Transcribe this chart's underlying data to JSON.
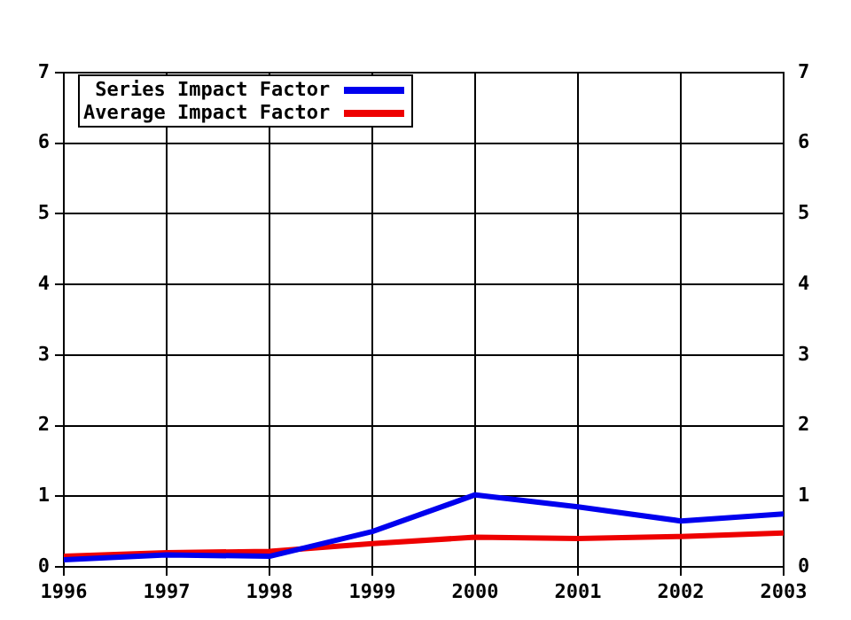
{
  "chart_data": {
    "type": "line",
    "x": [
      1996,
      1997,
      1998,
      1999,
      2000,
      2001,
      2002,
      2003
    ],
    "series": [
      {
        "name": "Series Impact Factor",
        "color": "#0000ee",
        "values": [
          0.1,
          0.17,
          0.15,
          0.5,
          1.02,
          0.85,
          0.65,
          0.75
        ]
      },
      {
        "name": "Average Impact Factor",
        "color": "#ee0000",
        "values": [
          0.15,
          0.2,
          0.22,
          0.33,
          0.42,
          0.4,
          0.43,
          0.48
        ]
      }
    ],
    "xlim": [
      1996,
      2003
    ],
    "xticks": [
      1996,
      1997,
      1998,
      1999,
      2000,
      2001,
      2002,
      2003
    ],
    "ylim": [
      0,
      7
    ],
    "yticks": [
      0,
      1,
      2,
      3,
      4,
      5,
      6,
      7
    ],
    "y2lim": [
      0,
      7
    ],
    "y2ticks": [
      0,
      1,
      2,
      3,
      4,
      5,
      6,
      7
    ],
    "grid": true,
    "legend": "top left",
    "marker": "none",
    "line_style": "solid"
  }
}
